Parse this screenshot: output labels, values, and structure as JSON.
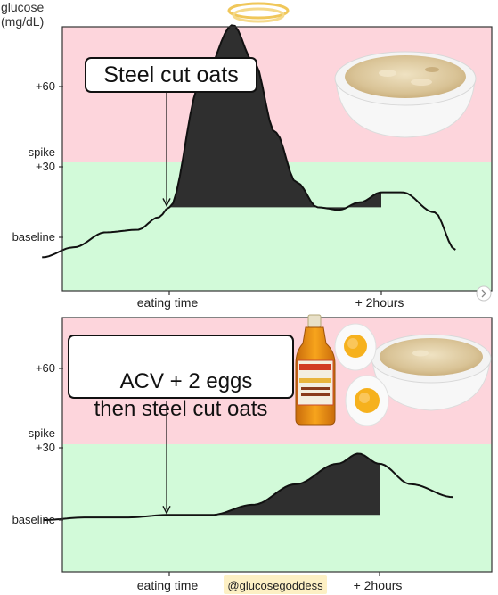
{
  "app": {
    "handle": "@glucosegoddess",
    "colors": {
      "spike_zone": "#fdd5dc",
      "normal_zone": "#d2fad9",
      "area_fill": "#2f2f2f",
      "line": "#111111",
      "handle_bg": "#fdf0c4",
      "halo": "#f0c75a"
    },
    "icons": [
      "halo-icon",
      "oatmeal-bowl-icon",
      "vinegar-bottle-icon",
      "boiled-egg-icon",
      "next-arrow-icon"
    ]
  },
  "chart_data": [
    {
      "type": "area",
      "callout": "Steel cut oats",
      "ylabel": "glucose\n(mg/dL)",
      "y_ticks": [
        "+60",
        "spike\n+30",
        "baseline"
      ],
      "x_ticks": [
        "eating time",
        "+ 2hours"
      ],
      "x": [
        -1.2,
        -0.9,
        -0.6,
        -0.3,
        -0.1,
        0,
        0.3,
        0.6,
        0.8,
        1.0,
        1.2,
        1.4,
        1.6,
        1.8,
        2.0,
        2.2,
        2.5,
        2.7
      ],
      "series": [
        {
          "values": [
            -8,
            -4,
            2,
            3,
            8,
            12,
            62,
            85,
            70,
            42,
            22,
            12,
            11,
            14,
            18,
            18,
            10,
            -5
          ]
        }
      ],
      "shaded_range_x": [
        0,
        2.0
      ]
    },
    {
      "type": "area",
      "callout": "ACV + 2 eggs\nthen steel cut oats",
      "y_ticks": [
        "+60",
        "spike\n+30",
        "baseline"
      ],
      "x_ticks": [
        "eating time",
        "+ 2hours"
      ],
      "x": [
        -1.2,
        -0.8,
        -0.4,
        0,
        0.4,
        0.8,
        1.2,
        1.6,
        1.8,
        2.0,
        2.3,
        2.7
      ],
      "series": [
        {
          "values": [
            0,
            1,
            1,
            2,
            2,
            6,
            14,
            22,
            26,
            22,
            14,
            9
          ]
        }
      ],
      "shaded_range_x": [
        0.4,
        2.0
      ]
    }
  ]
}
